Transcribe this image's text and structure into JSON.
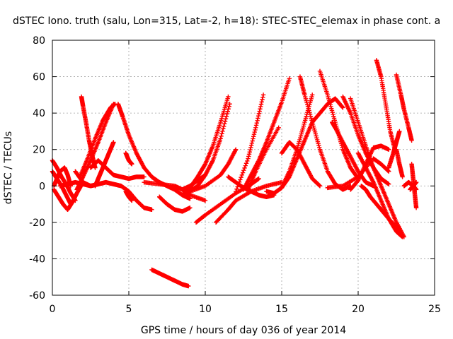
{
  "chart_data": {
    "type": "scatter",
    "title": "dSTEC Iono. truth (salu, Lon=315, Lat=-2, h=18): STEC-STEC_elemax in phase cont. a",
    "xlabel": "GPS time / hours of day 036 of year 2014",
    "ylabel": "dSTEC  / TECUs",
    "xlim": [
      0,
      25
    ],
    "ylim": [
      -60,
      80
    ],
    "xticks": [
      0,
      5,
      10,
      15,
      20,
      25
    ],
    "yticks": [
      -60,
      -40,
      -20,
      0,
      20,
      40,
      60,
      80
    ],
    "grid": true,
    "marker": "+",
    "color": "#ff0000",
    "series": [
      {
        "x": [
          0.0,
          0.3,
          0.6,
          0.9,
          1.2,
          1.5
        ],
        "y": [
          14,
          10,
          5,
          1,
          -4,
          -8
        ]
      },
      {
        "x": [
          0.0,
          0.3,
          0.6,
          0.9,
          1.2
        ],
        "y": [
          8,
          4,
          0,
          -5,
          -10
        ]
      },
      {
        "x": [
          0.1,
          0.4,
          0.7,
          1.0,
          1.3,
          1.6,
          2.0
        ],
        "y": [
          -2,
          -6,
          -10,
          -13,
          -9,
          -4,
          2
        ]
      },
      {
        "x": [
          0.1,
          0.3,
          0.5,
          0.8,
          1.0,
          1.2
        ],
        "y": [
          0,
          4,
          8,
          10,
          6,
          0
        ]
      },
      {
        "x": [
          0.5,
          1.0,
          1.5,
          2.0,
          2.5,
          3.0,
          3.5
        ],
        "y": [
          0,
          1,
          2,
          1,
          0,
          1,
          2
        ]
      },
      {
        "x": [
          1.5,
          2.0,
          2.5,
          3.0,
          3.5,
          4.0,
          4.5,
          5.0,
          5.5,
          6.0,
          6.5
        ],
        "y": [
          8,
          2,
          0,
          1,
          2,
          1,
          0,
          -3,
          -8,
          -12,
          -13
        ]
      },
      {
        "x": [
          1.9,
          2.0,
          2.2,
          2.4,
          2.6,
          2.8
        ],
        "y": [
          49,
          44,
          35,
          25,
          17,
          10
        ]
      },
      {
        "x": [
          1.6,
          2.0,
          2.5,
          3.0,
          3.5,
          4.0
        ],
        "y": [
          -2,
          5,
          14,
          24,
          35,
          45
        ]
      },
      {
        "x": [
          1.8,
          2.3,
          2.8,
          3.3,
          3.8,
          4.1
        ],
        "y": [
          5,
          15,
          26,
          36,
          43,
          45
        ]
      },
      {
        "x": [
          2.8,
          3.0,
          3.2,
          3.4,
          3.6,
          3.8,
          4.0
        ],
        "y": [
          0,
          4,
          8,
          12,
          16,
          20,
          24
        ]
      },
      {
        "x": [
          2.5,
          3.0,
          3.5,
          4.0,
          4.5,
          5.0,
          5.5,
          6.0
        ],
        "y": [
          10,
          14,
          10,
          6,
          5,
          4,
          5,
          5
        ]
      },
      {
        "x": [
          4.3,
          4.6,
          5.0,
          5.5,
          6.0,
          6.5,
          7.0,
          7.5,
          8.0,
          8.5,
          9.0
        ],
        "y": [
          45,
          38,
          28,
          18,
          10,
          5,
          2,
          0,
          -2,
          -5,
          -7
        ]
      },
      {
        "x": [
          4.8,
          5.0,
          5.2
        ],
        "y": [
          18,
          14,
          12
        ]
      },
      {
        "x": [
          4.8,
          5.0,
          5.2
        ],
        "y": [
          -3,
          -6,
          -8
        ]
      },
      {
        "x": [
          6.5,
          7.0,
          7.5,
          8.0,
          8.5,
          8.9
        ],
        "y": [
          -46,
          -48,
          -50,
          -52,
          -54,
          -55
        ]
      },
      {
        "x": [
          6.0,
          7.0,
          8.0,
          8.5,
          9.0,
          10.0
        ],
        "y": [
          2,
          1,
          0,
          -2,
          -5,
          -8
        ]
      },
      {
        "x": [
          7.0,
          7.5,
          8.0,
          8.5,
          9.0
        ],
        "y": [
          -6,
          -10,
          -13,
          -14,
          -12
        ]
      },
      {
        "x": [
          8.5,
          9.0,
          9.5,
          10.0,
          10.5,
          11.0,
          11.5
        ],
        "y": [
          -5,
          -1,
          5,
          12,
          22,
          35,
          49
        ]
      },
      {
        "x": [
          8.8,
          9.5,
          10.0,
          10.5,
          11.0,
          11.6
        ],
        "y": [
          -4,
          0,
          6,
          14,
          26,
          45
        ]
      },
      {
        "x": [
          9.0,
          10.0,
          11.0,
          11.5,
          12.0
        ],
        "y": [
          -3,
          0,
          6,
          12,
          20
        ]
      },
      {
        "x": [
          8.5,
          9.0,
          9.5,
          10.0
        ],
        "y": [
          -2,
          0,
          3,
          6
        ]
      },
      {
        "x": [
          9.4,
          10.0,
          11.0,
          12.0,
          13.0,
          13.5
        ],
        "y": [
          -20,
          -16,
          -10,
          -4,
          1,
          4
        ]
      },
      {
        "x": [
          10.7,
          11.5,
          12.0,
          13.0,
          14.0,
          15.0
        ],
        "y": [
          -20,
          -13,
          -8,
          -3,
          0,
          2
        ]
      },
      {
        "x": [
          11.5,
          12.0,
          12.5,
          13.0,
          13.5,
          14.0,
          14.5
        ],
        "y": [
          5,
          2,
          -1,
          -3,
          -5,
          -6,
          -5
        ]
      },
      {
        "x": [
          12.5,
          13.0,
          13.5,
          14.0,
          14.5,
          15.0,
          15.5
        ],
        "y": [
          -2,
          6,
          14,
          24,
          35,
          46,
          59
        ]
      },
      {
        "x": [
          12.0,
          12.8,
          13.3,
          13.8
        ],
        "y": [
          -3,
          15,
          32,
          50
        ]
      },
      {
        "x": [
          12.8,
          13.3,
          14.0,
          14.8
        ],
        "y": [
          -2,
          8,
          20,
          32
        ]
      },
      {
        "x": [
          14.0,
          14.5,
          15.0,
          15.5,
          16.0,
          16.5,
          17.0
        ],
        "y": [
          -3,
          -4,
          -1,
          8,
          20,
          35,
          50
        ]
      },
      {
        "x": [
          15.0,
          15.5,
          16.0,
          16.5,
          17.0,
          17.5,
          18.0,
          18.5,
          19.0
        ],
        "y": [
          -1,
          5,
          15,
          25,
          35,
          40,
          45,
          48,
          43
        ]
      },
      {
        "x": [
          16.2,
          16.5,
          17.0,
          17.5,
          18.0,
          18.5,
          19.0,
          19.5
        ],
        "y": [
          60,
          50,
          35,
          20,
          8,
          1,
          -2,
          0
        ]
      },
      {
        "x": [
          17.5,
          18.0,
          18.5,
          19.0,
          19.5,
          20.0
        ],
        "y": [
          63,
          50,
          35,
          20,
          10,
          4
        ]
      },
      {
        "x": [
          15.0,
          15.5,
          16.0,
          16.5,
          17.0,
          17.5
        ],
        "y": [
          18,
          24,
          20,
          12,
          4,
          0
        ]
      },
      {
        "x": [
          18.3,
          18.5,
          19.0,
          19.5,
          20.0,
          20.5,
          21.0
        ],
        "y": [
          35,
          32,
          24,
          16,
          8,
          2,
          0
        ]
      },
      {
        "x": [
          19.0,
          19.5,
          20.0,
          20.5,
          21.0,
          21.5,
          22.0
        ],
        "y": [
          49,
          40,
          28,
          18,
          10,
          4,
          1
        ]
      },
      {
        "x": [
          19.5,
          20.0,
          20.5,
          21.0,
          21.5,
          22.0,
          22.5,
          23.0
        ],
        "y": [
          48,
          35,
          22,
          10,
          0,
          -10,
          -20,
          -28
        ]
      },
      {
        "x": [
          18.0,
          19.0,
          20.0,
          21.0,
          21.5,
          22.0
        ],
        "y": [
          -1,
          0,
          5,
          15,
          12,
          8
        ]
      },
      {
        "x": [
          19.5,
          20.0,
          20.5,
          21.0,
          21.5,
          22.0
        ],
        "y": [
          -2,
          3,
          12,
          21,
          22,
          20
        ]
      },
      {
        "x": [
          20.0,
          20.5,
          21.0,
          21.5,
          22.0,
          22.5,
          22.9
        ],
        "y": [
          18,
          10,
          2,
          -8,
          -18,
          -25,
          -28
        ]
      },
      {
        "x": [
          20.2,
          20.5,
          20.8,
          21.2,
          21.6,
          22.0,
          22.4,
          22.8
        ],
        "y": [
          0,
          -2,
          -6,
          -10,
          -14,
          -18,
          -22,
          -26
        ]
      },
      {
        "x": [
          21.2,
          21.5,
          21.8,
          22.1,
          22.4
        ],
        "y": [
          69,
          60,
          45,
          30,
          20
        ]
      },
      {
        "x": [
          22.5,
          22.8,
          23.0,
          23.3,
          23.5
        ],
        "y": [
          61,
          50,
          42,
          32,
          25
        ]
      },
      {
        "x": [
          22.0,
          22.3,
          22.5,
          22.7
        ],
        "y": [
          10,
          18,
          24,
          30
        ]
      },
      {
        "x": [
          22.5,
          22.7,
          22.9
        ],
        "y": [
          20,
          12,
          5
        ]
      },
      {
        "x": [
          23.0,
          23.3,
          23.6,
          23.8
        ],
        "y": [
          0,
          2,
          0,
          -2
        ]
      },
      {
        "x": [
          23.5,
          23.6,
          23.7,
          23.8
        ],
        "y": [
          12,
          4,
          -4,
          -12
        ]
      },
      {
        "x": [
          23.4,
          23.6,
          23.8
        ],
        "y": [
          -2,
          0,
          2
        ]
      }
    ]
  }
}
